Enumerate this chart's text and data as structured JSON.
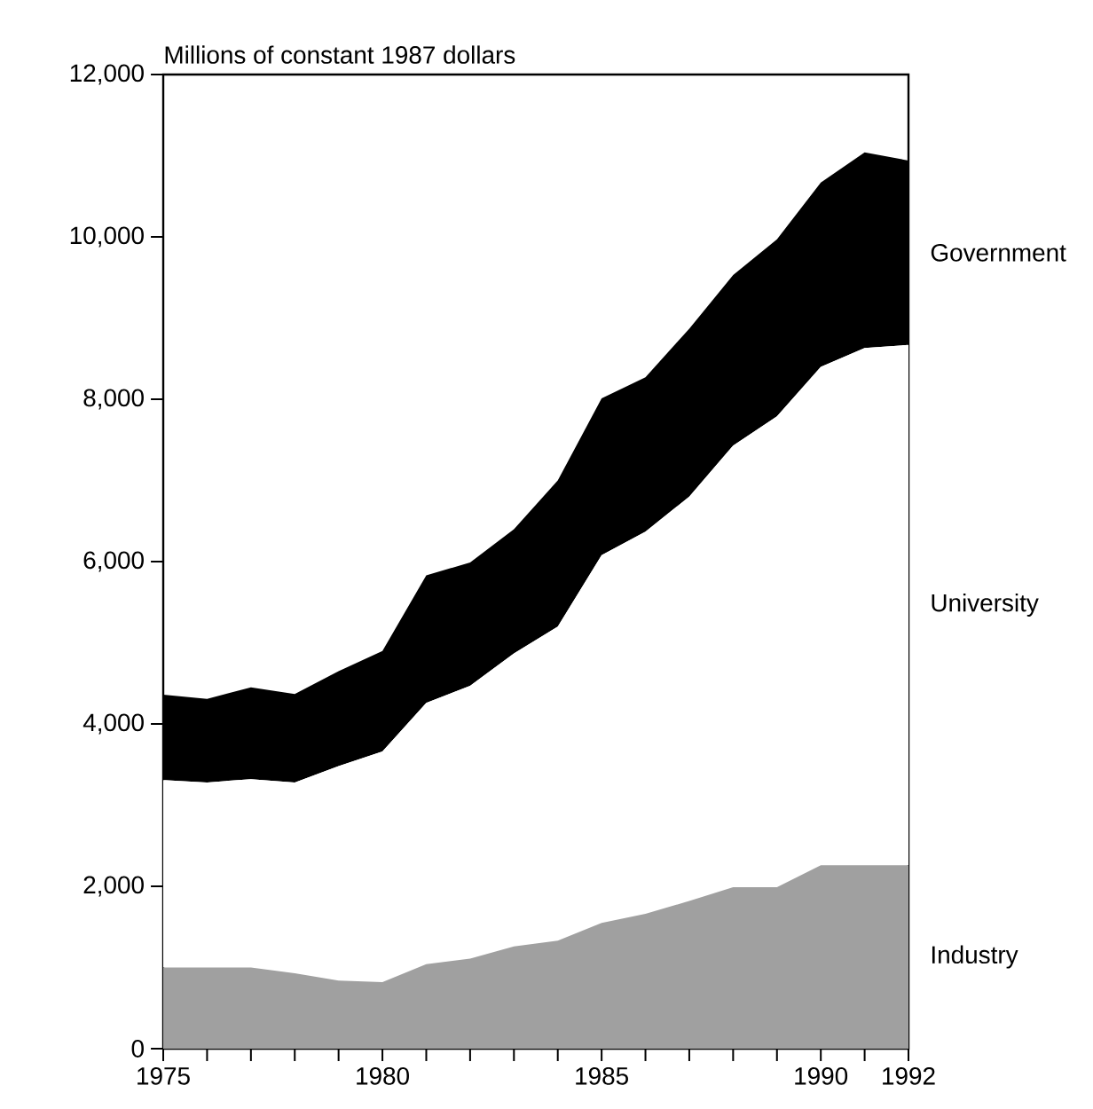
{
  "chart_data": {
    "type": "area",
    "stacked": true,
    "ylabel": "Millions of constant 1987 dollars",
    "x": [
      1975,
      1976,
      1977,
      1978,
      1979,
      1980,
      1981,
      1982,
      1983,
      1984,
      1985,
      1986,
      1987,
      1988,
      1989,
      1990,
      1991,
      1992
    ],
    "series": [
      {
        "name": "Industry",
        "color": "#a0a0a0",
        "values": [
          1000,
          1000,
          1000,
          930,
          840,
          820,
          1040,
          1110,
          1260,
          1330,
          1550,
          1660,
          1820,
          1990,
          1990,
          2260,
          2260,
          2260
        ]
      },
      {
        "name": "University",
        "color": "#ffffff",
        "values": [
          2310,
          2280,
          2320,
          2350,
          2640,
          2840,
          3220,
          3360,
          3610,
          3870,
          4530,
          4710,
          4980,
          5440,
          5800,
          6140,
          6370,
          6410
        ]
      },
      {
        "name": "Government",
        "color": "#000000",
        "values": [
          1050,
          1030,
          1130,
          1090,
          1170,
          1240,
          1570,
          1520,
          1530,
          1800,
          1930,
          1900,
          2070,
          2100,
          2180,
          2270,
          2410,
          2270
        ]
      }
    ],
    "xlim": [
      1975,
      1992
    ],
    "xticks": [
      1975,
      {
        "value": 1976,
        "label": null
      },
      {
        "value": 1977,
        "label": null
      },
      {
        "value": 1978,
        "label": null
      },
      {
        "value": 1979,
        "label": null
      },
      1980,
      {
        "value": 1981,
        "label": null
      },
      {
        "value": 1982,
        "label": null
      },
      {
        "value": 1983,
        "label": null
      },
      {
        "value": 1984,
        "label": null
      },
      1985,
      {
        "value": 1986,
        "label": null
      },
      {
        "value": 1987,
        "label": null
      },
      {
        "value": 1988,
        "label": null
      },
      {
        "value": 1989,
        "label": null
      },
      1990,
      {
        "value": 1991,
        "label": null
      },
      1992
    ],
    "ylim": [
      0,
      12000
    ],
    "yticks": [
      0,
      {
        "value": 2000,
        "label": "2,000"
      },
      {
        "value": 4000,
        "label": "4,000"
      },
      {
        "value": 6000,
        "label": "6,000"
      },
      {
        "value": 8000,
        "label": "8,000"
      },
      {
        "value": 10000,
        "label": "10,000"
      },
      {
        "value": 12000,
        "label": "12,000"
      }
    ],
    "legend": false,
    "grid": false
  }
}
